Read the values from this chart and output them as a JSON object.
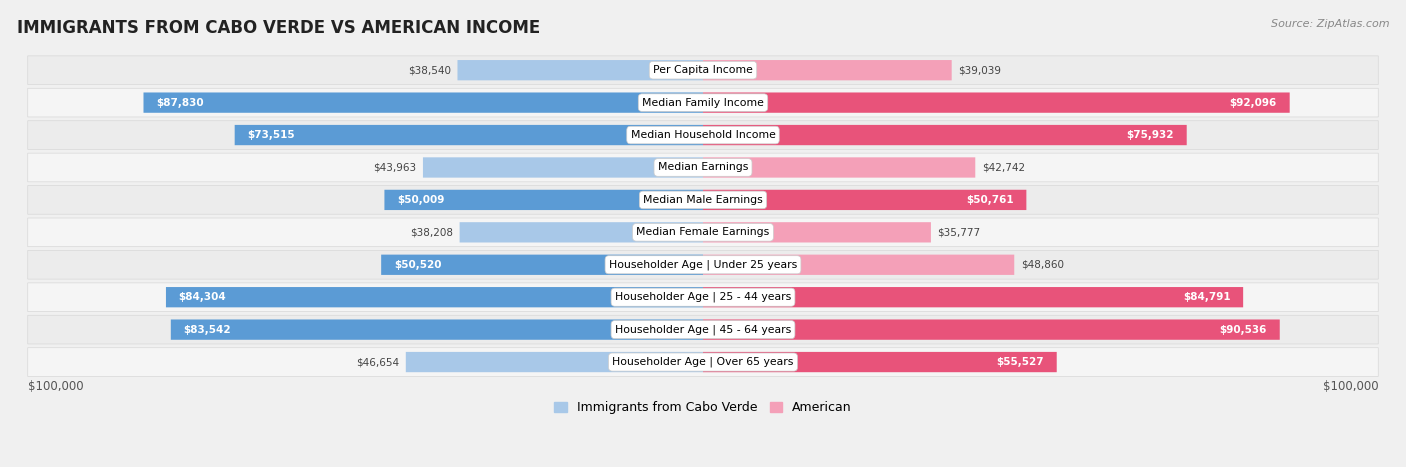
{
  "title": "IMMIGRANTS FROM CABO VERDE VS AMERICAN INCOME",
  "source": "Source: ZipAtlas.com",
  "categories": [
    "Per Capita Income",
    "Median Family Income",
    "Median Household Income",
    "Median Earnings",
    "Median Male Earnings",
    "Median Female Earnings",
    "Householder Age | Under 25 years",
    "Householder Age | 25 - 44 years",
    "Householder Age | 45 - 64 years",
    "Householder Age | Over 65 years"
  ],
  "cabo_verde": [
    38540,
    87830,
    73515,
    43963,
    50009,
    38208,
    50520,
    84304,
    83542,
    46654
  ],
  "american": [
    39039,
    92096,
    75932,
    42742,
    50761,
    35777,
    48860,
    84791,
    90536,
    55527
  ],
  "max_val": 100000,
  "cabo_verde_color_light": "#a8c8e8",
  "cabo_verde_color_dark": "#5b9bd5",
  "american_color_light": "#f4a0b8",
  "american_color_dark": "#e8537a",
  "bg_color": "#f0f0f0",
  "row_bg_light": "#f8f8f8",
  "row_bg_dark": "#e8e8e8",
  "xlabel_left": "$100,000",
  "xlabel_right": "$100,000",
  "legend_cabo": "Immigrants from Cabo Verde",
  "legend_american": "American",
  "inside_threshold": 0.5
}
